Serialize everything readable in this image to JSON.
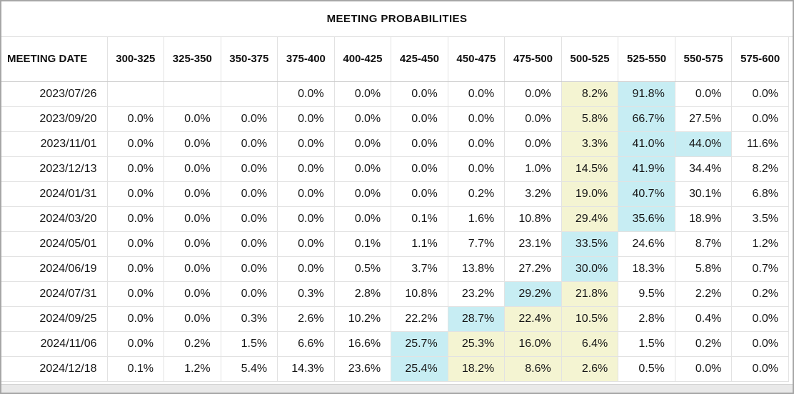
{
  "colors": {
    "highlight_cyan": "#c7edf3",
    "highlight_yellow": "#f4f4d2",
    "grid_line": "#e2e2e2",
    "outer_border": "#a6a6a6",
    "scrollbar_track": "#e9e9e9"
  },
  "chart_data": {
    "type": "table",
    "title": "MEETING PROBABILITIES",
    "columns": [
      "MEETING DATE",
      "300-325",
      "325-350",
      "350-375",
      "375-400",
      "400-425",
      "425-450",
      "450-475",
      "475-500",
      "500-525",
      "525-550",
      "550-575",
      "575-600"
    ],
    "rows": [
      {
        "date": "2023/07/26",
        "values": [
          "",
          "",
          "",
          "0.0%",
          "0.0%",
          "0.0%",
          "0.0%",
          "0.0%",
          "8.2%",
          "91.8%",
          "0.0%",
          "0.0%"
        ],
        "highlights": [
          "",
          "",
          "",
          "",
          "",
          "",
          "",
          "",
          "yellow",
          "cyan",
          "",
          ""
        ]
      },
      {
        "date": "2023/09/20",
        "values": [
          "0.0%",
          "0.0%",
          "0.0%",
          "0.0%",
          "0.0%",
          "0.0%",
          "0.0%",
          "0.0%",
          "5.8%",
          "66.7%",
          "27.5%",
          "0.0%"
        ],
        "highlights": [
          "",
          "",
          "",
          "",
          "",
          "",
          "",
          "",
          "yellow",
          "cyan",
          "",
          ""
        ]
      },
      {
        "date": "2023/11/01",
        "values": [
          "0.0%",
          "0.0%",
          "0.0%",
          "0.0%",
          "0.0%",
          "0.0%",
          "0.0%",
          "0.0%",
          "3.3%",
          "41.0%",
          "44.0%",
          "11.6%"
        ],
        "highlights": [
          "",
          "",
          "",
          "",
          "",
          "",
          "",
          "",
          "yellow",
          "cyan",
          "cyan",
          ""
        ]
      },
      {
        "date": "2023/12/13",
        "values": [
          "0.0%",
          "0.0%",
          "0.0%",
          "0.0%",
          "0.0%",
          "0.0%",
          "0.0%",
          "1.0%",
          "14.5%",
          "41.9%",
          "34.4%",
          "8.2%"
        ],
        "highlights": [
          "",
          "",
          "",
          "",
          "",
          "",
          "",
          "",
          "yellow",
          "cyan",
          "",
          ""
        ]
      },
      {
        "date": "2024/01/31",
        "values": [
          "0.0%",
          "0.0%",
          "0.0%",
          "0.0%",
          "0.0%",
          "0.0%",
          "0.2%",
          "3.2%",
          "19.0%",
          "40.7%",
          "30.1%",
          "6.8%"
        ],
        "highlights": [
          "",
          "",
          "",
          "",
          "",
          "",
          "",
          "",
          "yellow",
          "cyan",
          "",
          ""
        ]
      },
      {
        "date": "2024/03/20",
        "values": [
          "0.0%",
          "0.0%",
          "0.0%",
          "0.0%",
          "0.0%",
          "0.1%",
          "1.6%",
          "10.8%",
          "29.4%",
          "35.6%",
          "18.9%",
          "3.5%"
        ],
        "highlights": [
          "",
          "",
          "",
          "",
          "",
          "",
          "",
          "",
          "yellow",
          "cyan",
          "",
          ""
        ]
      },
      {
        "date": "2024/05/01",
        "values": [
          "0.0%",
          "0.0%",
          "0.0%",
          "0.0%",
          "0.1%",
          "1.1%",
          "7.7%",
          "23.1%",
          "33.5%",
          "24.6%",
          "8.7%",
          "1.2%"
        ],
        "highlights": [
          "",
          "",
          "",
          "",
          "",
          "",
          "",
          "",
          "cyan",
          "",
          "",
          ""
        ]
      },
      {
        "date": "2024/06/19",
        "values": [
          "0.0%",
          "0.0%",
          "0.0%",
          "0.0%",
          "0.5%",
          "3.7%",
          "13.8%",
          "27.2%",
          "30.0%",
          "18.3%",
          "5.8%",
          "0.7%"
        ],
        "highlights": [
          "",
          "",
          "",
          "",
          "",
          "",
          "",
          "",
          "cyan",
          "",
          "",
          ""
        ]
      },
      {
        "date": "2024/07/31",
        "values": [
          "0.0%",
          "0.0%",
          "0.0%",
          "0.3%",
          "2.8%",
          "10.8%",
          "23.2%",
          "29.2%",
          "21.8%",
          "9.5%",
          "2.2%",
          "0.2%"
        ],
        "highlights": [
          "",
          "",
          "",
          "",
          "",
          "",
          "",
          "cyan",
          "yellow",
          "",
          "",
          ""
        ]
      },
      {
        "date": "2024/09/25",
        "values": [
          "0.0%",
          "0.0%",
          "0.3%",
          "2.6%",
          "10.2%",
          "22.2%",
          "28.7%",
          "22.4%",
          "10.5%",
          "2.8%",
          "0.4%",
          "0.0%"
        ],
        "highlights": [
          "",
          "",
          "",
          "",
          "",
          "",
          "cyan",
          "yellow",
          "yellow",
          "",
          "",
          ""
        ]
      },
      {
        "date": "2024/11/06",
        "values": [
          "0.0%",
          "0.2%",
          "1.5%",
          "6.6%",
          "16.6%",
          "25.7%",
          "25.3%",
          "16.0%",
          "6.4%",
          "1.5%",
          "0.2%",
          "0.0%"
        ],
        "highlights": [
          "",
          "",
          "",
          "",
          "",
          "cyan",
          "yellow",
          "yellow",
          "yellow",
          "",
          "",
          ""
        ]
      },
      {
        "date": "2024/12/18",
        "values": [
          "0.1%",
          "1.2%",
          "5.4%",
          "14.3%",
          "23.6%",
          "25.4%",
          "18.2%",
          "8.6%",
          "2.6%",
          "0.5%",
          "0.0%",
          "0.0%"
        ],
        "highlights": [
          "",
          "",
          "",
          "",
          "",
          "cyan",
          "yellow",
          "yellow",
          "yellow",
          "",
          "",
          ""
        ]
      }
    ]
  }
}
